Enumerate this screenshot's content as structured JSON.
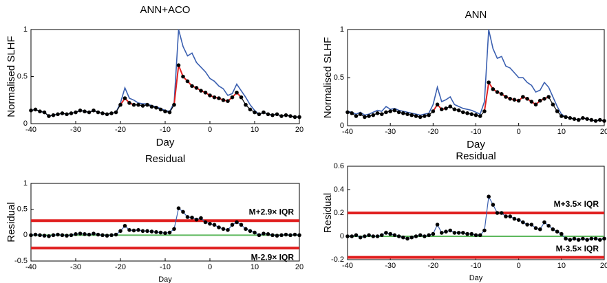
{
  "chart_data": [
    {
      "type": "line",
      "title": "ANN+ACO",
      "xlabel": "Day",
      "ylabel": "Normalised SLHF",
      "xlim": [
        -40,
        20
      ],
      "xticks": [
        -40,
        -30,
        -20,
        -10,
        0,
        10,
        20
      ],
      "ylim": [
        0,
        1
      ],
      "yticks": [
        0,
        0.5,
        1
      ],
      "x": [
        -40,
        -39,
        -38,
        -37,
        -36,
        -35,
        -34,
        -33,
        -32,
        -31,
        -30,
        -29,
        -28,
        -27,
        -26,
        -25,
        -24,
        -23,
        -22,
        -21,
        -20,
        -19,
        -18,
        -17,
        -16,
        -15,
        -14,
        -13,
        -12,
        -11,
        -10,
        -9,
        -8,
        -7,
        -6,
        -5,
        -4,
        -3,
        -2,
        -1,
        0,
        1,
        2,
        3,
        4,
        5,
        6,
        7,
        8,
        9,
        10,
        11,
        12,
        13,
        14,
        15,
        16,
        17,
        18,
        19,
        20
      ],
      "highlight": {
        "color": "#e02020",
        "ranges": [
          [
            -20,
            -17
          ],
          [
            -8,
            7
          ]
        ]
      },
      "series": [
        {
          "color": "#3a5fb0",
          "style": "line",
          "values": [
            0.14,
            0.15,
            0.13,
            0.12,
            0.08,
            0.09,
            0.1,
            0.11,
            0.1,
            0.11,
            0.12,
            0.14,
            0.13,
            0.12,
            0.14,
            0.12,
            0.11,
            0.1,
            0.11,
            0.12,
            0.22,
            0.38,
            0.27,
            0.25,
            0.22,
            0.21,
            0.21,
            0.19,
            0.18,
            0.16,
            0.14,
            0.13,
            0.22,
            1.0,
            0.82,
            0.72,
            0.75,
            0.65,
            0.6,
            0.55,
            0.48,
            0.45,
            0.4,
            0.37,
            0.3,
            0.32,
            0.42,
            0.35,
            0.28,
            0.2,
            0.14,
            0.1,
            0.12,
            0.1,
            0.09,
            0.1,
            0.08,
            0.09,
            0.08,
            0.07,
            0.07
          ]
        },
        {
          "color": "#000000",
          "style": "dots",
          "values": [
            0.14,
            0.15,
            0.13,
            0.12,
            0.08,
            0.09,
            0.1,
            0.11,
            0.1,
            0.11,
            0.12,
            0.14,
            0.13,
            0.12,
            0.14,
            0.12,
            0.11,
            0.1,
            0.11,
            0.12,
            0.2,
            0.27,
            0.22,
            0.2,
            0.2,
            0.19,
            0.2,
            0.18,
            0.17,
            0.15,
            0.13,
            0.12,
            0.2,
            0.62,
            0.5,
            0.45,
            0.4,
            0.38,
            0.35,
            0.33,
            0.3,
            0.28,
            0.27,
            0.25,
            0.24,
            0.28,
            0.33,
            0.28,
            0.2,
            0.15,
            0.12,
            0.1,
            0.12,
            0.1,
            0.09,
            0.1,
            0.08,
            0.09,
            0.08,
            0.07,
            0.07
          ]
        }
      ]
    },
    {
      "type": "line",
      "title": "ANN",
      "xlabel": "Day",
      "ylabel": "Normalised SLHF",
      "xlim": [
        -40,
        20
      ],
      "xticks": [
        -40,
        -30,
        -20,
        -10,
        0,
        10,
        20
      ],
      "ylim": [
        0,
        1
      ],
      "yticks": [
        0,
        0.5,
        1
      ],
      "x": [
        -40,
        -39,
        -38,
        -37,
        -36,
        -35,
        -34,
        -33,
        -32,
        -31,
        -30,
        -29,
        -28,
        -27,
        -26,
        -25,
        -24,
        -23,
        -22,
        -21,
        -20,
        -19,
        -18,
        -17,
        -16,
        -15,
        -14,
        -13,
        -12,
        -11,
        -10,
        -9,
        -8,
        -7,
        -6,
        -5,
        -4,
        -3,
        -2,
        -1,
        0,
        1,
        2,
        3,
        4,
        5,
        6,
        7,
        8,
        9,
        10,
        11,
        12,
        13,
        14,
        15,
        16,
        17,
        18,
        19,
        20
      ],
      "highlight": {
        "color": "#e02020",
        "ranges": [
          [
            -20,
            -17
          ],
          [
            -8,
            7
          ]
        ]
      },
      "series": [
        {
          "color": "#3a5fb0",
          "style": "line",
          "values": [
            0.15,
            0.14,
            0.12,
            0.14,
            0.11,
            0.12,
            0.14,
            0.16,
            0.15,
            0.2,
            0.17,
            0.18,
            0.16,
            0.15,
            0.14,
            0.13,
            0.12,
            0.11,
            0.12,
            0.13,
            0.22,
            0.4,
            0.25,
            0.27,
            0.3,
            0.22,
            0.2,
            0.18,
            0.17,
            0.16,
            0.14,
            0.12,
            0.25,
            1.0,
            0.8,
            0.7,
            0.72,
            0.62,
            0.6,
            0.55,
            0.5,
            0.5,
            0.45,
            0.42,
            0.35,
            0.37,
            0.45,
            0.4,
            0.3,
            0.2,
            0.12,
            0.09,
            0.08,
            0.07,
            0.06,
            0.08,
            0.07,
            0.06,
            0.05,
            0.06,
            0.05
          ]
        },
        {
          "color": "#000000",
          "style": "dots",
          "values": [
            0.14,
            0.13,
            0.1,
            0.12,
            0.09,
            0.1,
            0.11,
            0.13,
            0.12,
            0.14,
            0.15,
            0.16,
            0.14,
            0.13,
            0.12,
            0.11,
            0.1,
            0.09,
            0.1,
            0.11,
            0.15,
            0.22,
            0.17,
            0.18,
            0.2,
            0.17,
            0.16,
            0.14,
            0.13,
            0.12,
            0.11,
            0.1,
            0.15,
            0.45,
            0.38,
            0.35,
            0.33,
            0.3,
            0.28,
            0.27,
            0.26,
            0.3,
            0.28,
            0.25,
            0.22,
            0.26,
            0.28,
            0.3,
            0.22,
            0.15,
            0.1,
            0.09,
            0.08,
            0.07,
            0.06,
            0.08,
            0.07,
            0.06,
            0.05,
            0.06,
            0.05
          ]
        }
      ]
    },
    {
      "type": "line",
      "title": "Residual",
      "xlabel": "Day",
      "ylabel": "Residual",
      "xlim": [
        -40,
        20
      ],
      "xticks": [
        -40,
        -30,
        -20,
        -10,
        0,
        10,
        20
      ],
      "ylim": [
        -0.5,
        1
      ],
      "yticks": [
        -0.5,
        0,
        0.5,
        1
      ],
      "x": [
        -40,
        -39,
        -38,
        -37,
        -36,
        -35,
        -34,
        -33,
        -32,
        -31,
        -30,
        -29,
        -28,
        -27,
        -26,
        -25,
        -24,
        -23,
        -22,
        -21,
        -20,
        -19,
        -18,
        -17,
        -16,
        -15,
        -14,
        -13,
        -12,
        -11,
        -10,
        -9,
        -8,
        -7,
        -6,
        -5,
        -4,
        -3,
        -2,
        -1,
        0,
        1,
        2,
        3,
        4,
        5,
        6,
        7,
        8,
        9,
        10,
        11,
        12,
        13,
        14,
        15,
        16,
        17,
        18,
        19,
        20
      ],
      "hlines": [
        {
          "value": 0.28,
          "color": "#e02020",
          "label": "M+2.9× IQR",
          "label_side": "above"
        },
        {
          "value": -0.25,
          "color": "#e02020",
          "label": "M-2.9× IQR",
          "label_side": "below"
        },
        {
          "value": 0,
          "color": "#5cb85c"
        }
      ],
      "series": [
        {
          "color": "#000000",
          "line_color": "#3a5fb0",
          "style": "line-dots",
          "values": [
            0,
            0.01,
            0,
            -0.01,
            -0.02,
            0,
            0.01,
            0,
            -0.01,
            0,
            0.02,
            0.03,
            0.02,
            0.01,
            0.03,
            0.01,
            0,
            -0.01,
            0,
            0.01,
            0.08,
            0.18,
            0.1,
            0.09,
            0.1,
            0.08,
            0.08,
            0.07,
            0.06,
            0.05,
            0.04,
            0.05,
            0.12,
            0.52,
            0.45,
            0.35,
            0.34,
            0.3,
            0.33,
            0.25,
            0.22,
            0.2,
            0.15,
            0.12,
            0.1,
            0.2,
            0.25,
            0.2,
            0.12,
            0.08,
            0.05,
            0,
            0.03,
            0.02,
            0,
            -0.01,
            0,
            0.01,
            0,
            0.01,
            0
          ]
        }
      ]
    },
    {
      "type": "line",
      "title": "Residual",
      "xlabel": "Day",
      "ylabel": "Residual",
      "xlim": [
        -40,
        20
      ],
      "xticks": [
        -40,
        -30,
        -20,
        -10,
        0,
        10,
        20
      ],
      "ylim": [
        -0.2,
        0.6
      ],
      "yticks": [
        -0.2,
        0,
        0.2,
        0.4,
        0.6
      ],
      "x": [
        -40,
        -39,
        -38,
        -37,
        -36,
        -35,
        -34,
        -33,
        -32,
        -31,
        -30,
        -29,
        -28,
        -27,
        -26,
        -25,
        -24,
        -23,
        -22,
        -21,
        -20,
        -19,
        -18,
        -17,
        -16,
        -15,
        -14,
        -13,
        -12,
        -11,
        -10,
        -9,
        -8,
        -7,
        -6,
        -5,
        -4,
        -3,
        -2,
        -1,
        0,
        1,
        2,
        3,
        4,
        5,
        6,
        7,
        8,
        9,
        10,
        11,
        12,
        13,
        14,
        15,
        16,
        17,
        18,
        19,
        20
      ],
      "hlines": [
        {
          "value": 0.2,
          "color": "#e02020",
          "label": "M+3.5× IQR",
          "label_side": "above"
        },
        {
          "value": -0.18,
          "color": "#e02020",
          "label": "M-3.5× IQR",
          "label_side": "above"
        },
        {
          "value": 0,
          "color": "#5cb85c"
        }
      ],
      "series": [
        {
          "color": "#000000",
          "line_color": "#3a5fb0",
          "style": "line-dots",
          "values": [
            0,
            0,
            0.01,
            -0.01,
            0,
            0.01,
            0,
            0,
            0.01,
            0.03,
            0.02,
            0.01,
            0,
            -0.01,
            -0.02,
            -0.01,
            0,
            0.01,
            0,
            0.01,
            0.02,
            0.1,
            0.03,
            0.04,
            0.05,
            0.03,
            0.03,
            0.03,
            0.02,
            0.02,
            0.01,
            0.01,
            0.05,
            0.34,
            0.27,
            0.2,
            0.2,
            0.17,
            0.17,
            0.15,
            0.14,
            0.12,
            0.1,
            0.1,
            0.07,
            0.06,
            0.12,
            0.09,
            0.06,
            0.04,
            0.02,
            -0.02,
            -0.03,
            -0.02,
            -0.03,
            -0.02,
            -0.03,
            -0.02,
            -0.02,
            -0.03,
            -0.02
          ]
        }
      ]
    }
  ]
}
